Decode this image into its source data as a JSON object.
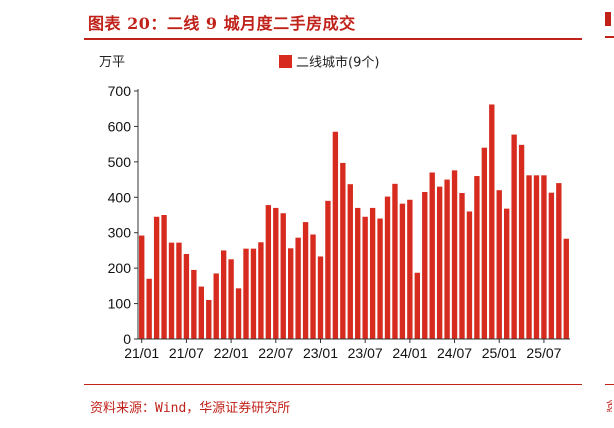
{
  "header": {
    "title": "图表 20：二线 9 城月度二手房成交"
  },
  "footer": {
    "source": "资料来源：Wind，华源证券研究所"
  },
  "colors": {
    "accent": "#c0221a",
    "bar": "#d62b1e"
  },
  "chart_data": {
    "type": "bar",
    "title": "",
    "unit_label": "万平",
    "xlabel": "",
    "ylabel": "万平",
    "ylim": [
      0,
      700
    ],
    "yticks": [
      0,
      100,
      200,
      300,
      400,
      500,
      600,
      700
    ],
    "xtick_labels": [
      "21/01",
      "21/07",
      "22/01",
      "22/07",
      "23/01",
      "23/07",
      "24/01",
      "24/07",
      "25/01",
      "25/07"
    ],
    "xtick_positions": [
      0,
      6,
      12,
      18,
      24,
      30,
      36,
      42,
      48,
      54
    ],
    "grid": false,
    "legend_position": "top-center",
    "series": [
      {
        "name": "二线城市(9个)",
        "values": [
          292,
          170,
          345,
          350,
          272,
          272,
          240,
          195,
          148,
          110,
          185,
          250,
          225,
          143,
          255,
          255,
          273,
          378,
          370,
          355,
          256,
          286,
          330,
          295,
          233,
          390,
          585,
          497,
          437,
          370,
          345,
          370,
          340,
          402,
          438,
          382,
          393,
          187,
          415,
          470,
          430,
          450,
          476,
          412,
          360,
          460,
          540,
          662,
          420,
          368,
          577,
          548,
          462,
          462,
          462,
          413,
          440,
          283
        ]
      }
    ]
  }
}
